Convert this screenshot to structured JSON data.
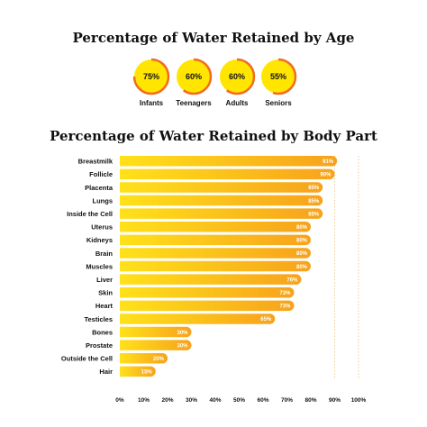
{
  "age_section": {
    "title": "Percentage of Water Retained by Age",
    "items": [
      {
        "label": "Infants",
        "value_text": "75%",
        "value": 75
      },
      {
        "label": "Teenagers",
        "value_text": "60%",
        "value": 60
      },
      {
        "label": "Adults",
        "value_text": "60%",
        "value": 60
      },
      {
        "label": "Seniors",
        "value_text": "55%",
        "value": 55
      }
    ]
  },
  "chart_data": {
    "type": "bar",
    "orientation": "horizontal",
    "title": "Percentage of Water Retained by Body Part",
    "categories": [
      "Breastmilk",
      "Follicle",
      "Placenta",
      "Lungs",
      "Inside the Cell",
      "Uterus",
      "Kidneys",
      "Brain",
      "Muscles",
      "Liver",
      "Skin",
      "Heart",
      "Testicles",
      "Bones",
      "Prostate",
      "Outside the Cell",
      "Hair"
    ],
    "values": [
      91,
      90,
      85,
      85,
      85,
      80,
      80,
      80,
      80,
      76,
      73,
      73,
      65,
      30,
      30,
      20,
      15
    ],
    "value_labels": [
      "91%",
      "90%",
      "85%",
      "85%",
      "85%",
      "80%",
      "80%",
      "80%",
      "80%",
      "76%",
      "73%",
      "73%",
      "65%",
      "30%",
      "30%",
      "20%",
      "15%"
    ],
    "xlim": [
      0,
      100
    ],
    "xticks": [
      "0%",
      "10%",
      "20%",
      "30%",
      "40%",
      "50%",
      "60%",
      "70%",
      "80%",
      "90%",
      "100%"
    ],
    "grid": "vertical dotted lines at 90% and 100%",
    "colors": {
      "bar_start": "#FFE11A",
      "bar_end": "#F7A21C",
      "ring": "#F26B21",
      "circle_fill": "#FFE500"
    }
  }
}
